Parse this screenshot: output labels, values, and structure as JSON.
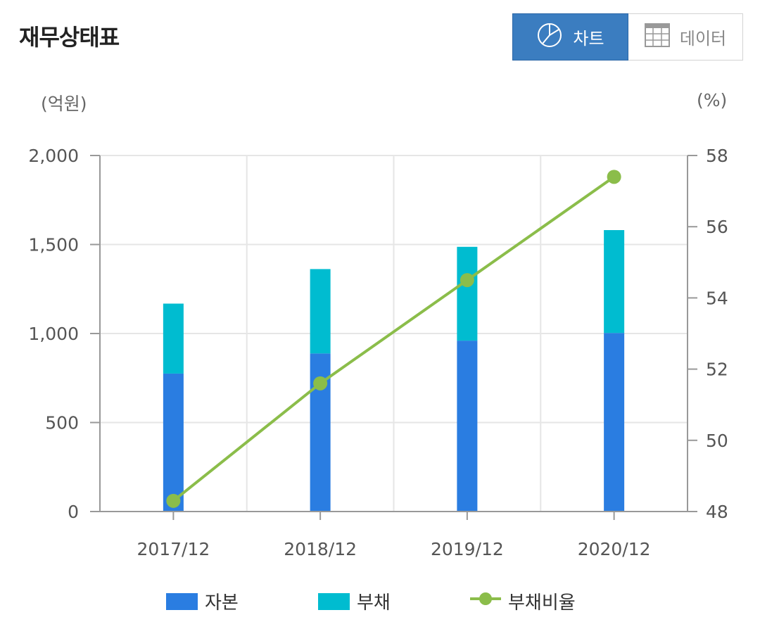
{
  "header": {
    "title": "재무상태표"
  },
  "toggle": {
    "chart_label": "차트",
    "data_label": "데이터",
    "chart_icon": "pie-chart-icon",
    "data_icon": "table-icon"
  },
  "units": {
    "left": "(억원)",
    "right": "(%)"
  },
  "colors": {
    "equity": "#2a7de1",
    "debt": "#00bcd0",
    "ratio": "#8bbd4a",
    "grid": "#e6e6e6",
    "axis": "#999999"
  },
  "chart_data": {
    "type": "bar",
    "stacked": true,
    "categories": [
      "2017/12",
      "2018/12",
      "2019/12",
      "2020/12"
    ],
    "series": [
      {
        "name": "자본",
        "type": "bar",
        "axis": "left",
        "values": [
          775,
          888,
          960,
          1003
        ]
      },
      {
        "name": "부채",
        "type": "bar",
        "axis": "left",
        "values": [
          393,
          474,
          527,
          578
        ]
      },
      {
        "name": "부채비율",
        "type": "line",
        "axis": "right",
        "values": [
          48.3,
          51.6,
          54.5,
          57.4
        ]
      }
    ],
    "y_left": {
      "min": 0,
      "max": 2000,
      "ticks": [
        0,
        500,
        1000,
        1500,
        2000
      ],
      "tick_labels": [
        "0",
        "500",
        "1,000",
        "1,500",
        "2,000"
      ]
    },
    "y_right": {
      "min": 48,
      "max": 58,
      "ticks": [
        48,
        50,
        52,
        54,
        56,
        58
      ],
      "tick_labels": [
        "48",
        "50",
        "52",
        "54",
        "56",
        "58"
      ]
    },
    "grid": true,
    "legend_position": "bottom"
  }
}
